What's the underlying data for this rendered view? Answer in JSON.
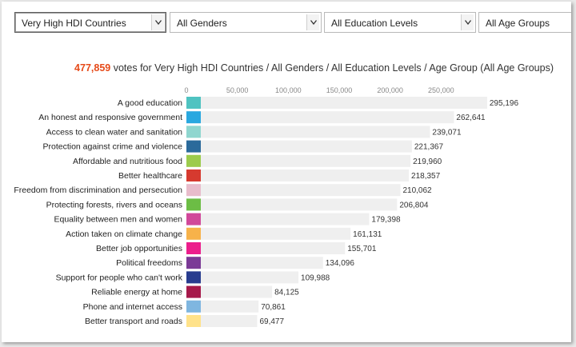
{
  "filters": [
    {
      "value": "Very High HDI Countries"
    },
    {
      "value": "All Genders"
    },
    {
      "value": "All Education Levels"
    },
    {
      "value": "All Age Groups"
    }
  ],
  "summary": {
    "count": "477,859",
    "text": "votes for Very High HDI Countries / All Genders / All Education Levels / Age Group (All Age Groups)",
    "count_color": "#e64a19"
  },
  "chart_data": {
    "type": "bar",
    "orientation": "horizontal",
    "categories": [
      "A good education",
      "An honest and responsive government",
      "Access to clean water and sanitation",
      "Protection against crime and violence",
      "Affordable and nutritious food",
      "Better healthcare",
      "Freedom from discrimination and persecution",
      "Protecting forests, rivers and oceans",
      "Equality between men and women",
      "Action taken on climate change",
      "Better job opportunities",
      "Political freedoms",
      "Support for people who can't work",
      "Reliable energy at home",
      "Phone and internet access",
      "Better transport and roads"
    ],
    "values": [
      295196,
      262641,
      239071,
      221367,
      219960,
      218357,
      210062,
      206804,
      179398,
      161131,
      155701,
      134096,
      109988,
      84125,
      70861,
      69477
    ],
    "value_labels": [
      "295,196",
      "262,641",
      "239,071",
      "221,367",
      "219,960",
      "218,357",
      "210,062",
      "206,804",
      "179,398",
      "161,131",
      "155,701",
      "134,096",
      "109,988",
      "84,125",
      "70,861",
      "69,477"
    ],
    "colors": [
      "#4fc3c1",
      "#29a8e0",
      "#8fd6cf",
      "#2b6a9b",
      "#9ccb4c",
      "#d63a2f",
      "#e8bccb",
      "#6cbd45",
      "#d1489a",
      "#f7b24a",
      "#ec1e8c",
      "#7b3a96",
      "#283c8f",
      "#a6194a",
      "#7fb6e0",
      "#ffe28a"
    ],
    "x_ticks": [
      0,
      50000,
      100000,
      150000,
      200000,
      250000
    ],
    "x_tick_labels": [
      "0",
      "50,000",
      "100,000",
      "150,000",
      "200,000",
      "250,000"
    ],
    "xlim": [
      0,
      300000
    ],
    "bar_background": "#efefef"
  }
}
